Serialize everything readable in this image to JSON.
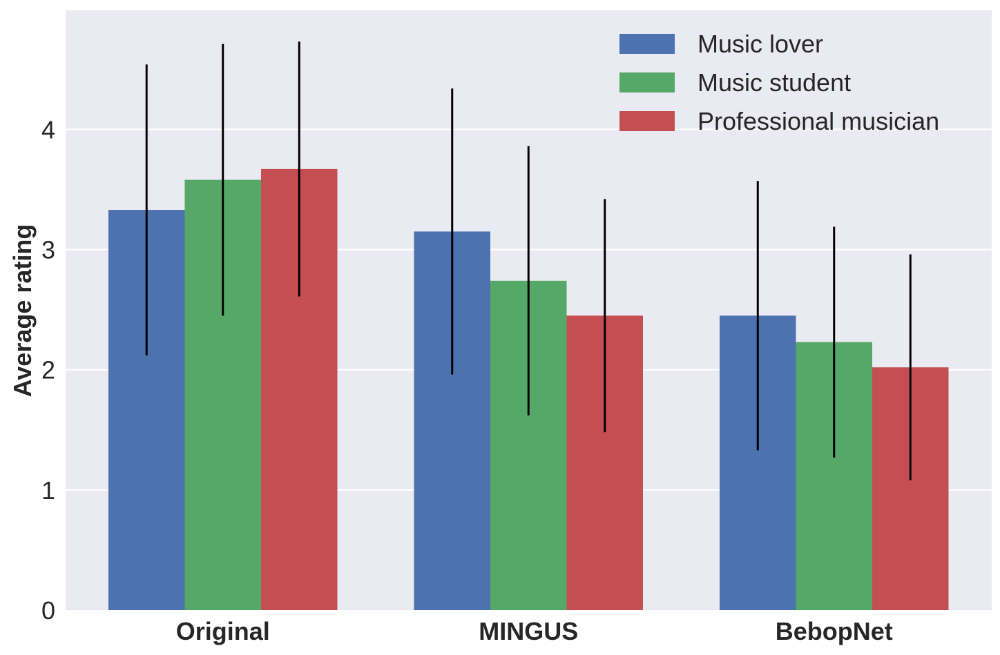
{
  "chart_data": {
    "type": "bar",
    "ylabel": "Average rating",
    "categories": [
      "Original",
      "MINGUS",
      "BebopNet"
    ],
    "series": [
      {
        "name": "Music lover",
        "color": "#4c72b0",
        "values": [
          3.33,
          3.15,
          2.45
        ],
        "errors": [
          1.21,
          1.19,
          1.12
        ]
      },
      {
        "name": "Music student",
        "color": "#55a868",
        "values": [
          3.58,
          2.74,
          2.23
        ],
        "errors": [
          1.13,
          1.12,
          0.96
        ]
      },
      {
        "name": "Professional musician",
        "color": "#c44e52",
        "values": [
          3.67,
          2.45,
          2.02
        ],
        "errors": [
          1.06,
          0.97,
          0.94
        ]
      }
    ],
    "ylim": [
      0,
      4.99
    ],
    "yticks": [
      0,
      1,
      2,
      3,
      4
    ],
    "grid": true,
    "legend_position": "top-right",
    "background_color": "#eaeaf2",
    "error_bar_color": "#000000"
  }
}
